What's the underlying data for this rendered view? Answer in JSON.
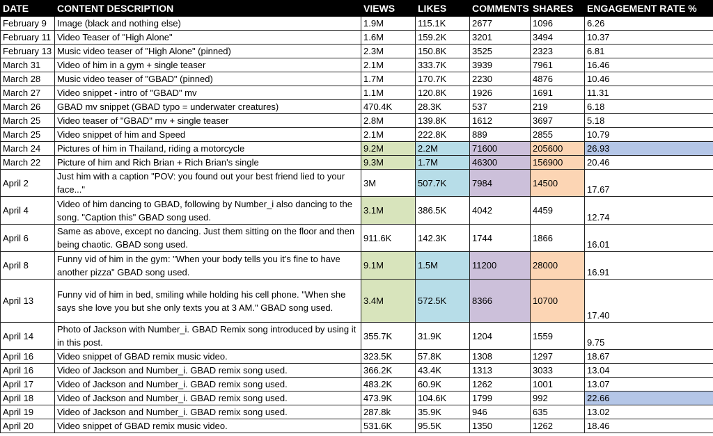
{
  "table": {
    "header": [
      "DATE",
      "CONTENT DESCRIPTION",
      "VIEWS",
      "LIKES",
      "COMMENTS",
      "SHARES",
      "ENGAGEMENT RATE %"
    ],
    "rows": [
      [
        "February 9",
        "Image (black and nothing else)",
        "1.9M",
        "115.1K",
        "2677",
        "1096",
        "6.26"
      ],
      [
        "February 11",
        "Video Teaser of \"High Alone\"",
        "1.6M",
        "159.2K",
        "3201",
        "3494",
        "10.37"
      ],
      [
        "February 13",
        "Music video teaser of \"High Alone\" (pinned)",
        "2.3M",
        "150.8K",
        "3525",
        "2323",
        "6.81"
      ],
      [
        "March 31",
        "Video of him in a gym + single teaser",
        "2.1M",
        "333.7K",
        "3939",
        "7961",
        "16.46"
      ],
      [
        "March 28",
        "Music video teaser of \"GBAD\" (pinned)",
        "1.7M",
        "170.7K",
        "2230",
        "4876",
        "10.46"
      ],
      [
        "March 27",
        "Video snippet - intro of \"GBAD\" mv",
        "1.1M",
        "120.8K",
        "1926",
        "1691",
        "11.31"
      ],
      [
        "March 26",
        "GBAD mv snippet (GBAD typo = underwater creatures)",
        "470.4K",
        "28.3K",
        "537",
        "219",
        "6.18"
      ],
      [
        "March 25",
        "Video teaser of \"GBAD\" mv + single teaser",
        "2.8M",
        "139.8K",
        "1612",
        "3697",
        "5.18"
      ],
      [
        "March 25",
        "Video snippet of him and Speed",
        "2.1M",
        "222.8K",
        "889",
        "2855",
        "10.79"
      ],
      [
        "March 24",
        "Pictures of him in Thailand, riding a motorcycle",
        "9.2M",
        "2.2M",
        "71600",
        "205600",
        "26.93"
      ],
      [
        "March 22",
        "Picture of him and Rich Brian + Rich Brian's single",
        "9.3M",
        "1.7M",
        "46300",
        "156900",
        "20.46"
      ],
      [
        "April 2",
        "Just him with a caption \"POV: you found out your best friend lied to your face...\"",
        "3M",
        "507.7K",
        "7984",
        "14500",
        "17.67"
      ],
      [
        "April 4",
        "Video of him dancing to GBAD, following by Number_i also dancing to the song. \"Caption this\" GBAD song used.",
        "3.1M",
        "386.5K",
        "4042",
        "4459",
        "12.74"
      ],
      [
        "April 6",
        "Same as above, except no dancing. Just them sitting on the floor and then being chaotic. GBAD song used.",
        "911.6K",
        "142.3K",
        "1744",
        "1866",
        "16.01"
      ],
      [
        "April 8",
        "Funny vid of him in the gym: \"When your body tells you it's fine to have another pizza\" GBAD song used.",
        "9.1M",
        "1.5M",
        "11200",
        "28000",
        "16.91"
      ],
      [
        "April 13",
        "Funny vid of him in bed, smiling while holding his cell phone. \"When she says she love you but she only texts you at 3 AM.\" GBAD song used.",
        "3.4M",
        "572.5K",
        "8366",
        "10700",
        "17.40"
      ],
      [
        "April 14",
        "Photo of Jackson with Number_i. GBAD Remix song introduced by using it in this post.",
        "355.7K",
        "31.9K",
        "1204",
        "1559",
        "9.75"
      ],
      [
        "April 16",
        "Video snippet of GBAD remix music video.",
        "323.5K",
        "57.8K",
        "1308",
        "1297",
        "18.67"
      ],
      [
        "April 16",
        "Video of Jackson and Number_i. GBAD remix song used.",
        "366.2K",
        "43.4K",
        "1313",
        "3033",
        "13.04"
      ],
      [
        "April 17",
        "Video of Jackson and Number_i. GBAD remix song used.",
        "483.2K",
        "60.9K",
        "1262",
        "1001",
        "13.07"
      ],
      [
        "April 18",
        "Video of Jackson and Number_i. GBAD remix song used.",
        "473.9K",
        "104.6K",
        "1799",
        "992",
        "22.66"
      ],
      [
        "April 19",
        "Video of Jackson and Number_i. GBAD remix song used.",
        "287.8k",
        "35.9K",
        "946",
        "635",
        "13.02"
      ],
      [
        "April 20",
        "Video snippet of GBAD remix music video.",
        "531.6K",
        "95.5K",
        "1350",
        "1262",
        "18.46"
      ]
    ]
  }
}
